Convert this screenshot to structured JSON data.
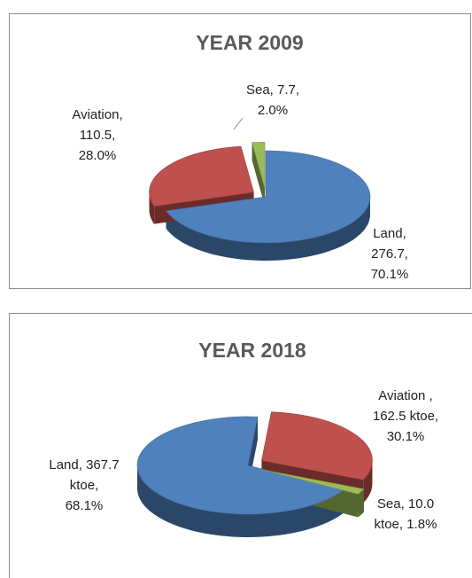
{
  "chart_data": [
    {
      "type": "pie",
      "title": "YEAR 2009",
      "categories": [
        "Land",
        "Aviation",
        "Sea"
      ],
      "values": [
        276.7,
        110.5,
        7.7
      ],
      "percentages": [
        70.1,
        28.0,
        2.0
      ],
      "value_labels": [
        [
          "Land,",
          "276.7,",
          "70.1%"
        ],
        [
          "Aviation,",
          "110.5,",
          "28.0%"
        ],
        [
          "Sea, 7.7,",
          "2.0%"
        ]
      ],
      "colors": [
        "#4f81bd",
        "#c0504d",
        "#9bbb59"
      ]
    },
    {
      "type": "pie",
      "title": "YEAR 2018",
      "categories": [
        "Land",
        "Aviation",
        "Sea"
      ],
      "values": [
        367.7,
        162.5,
        10.0
      ],
      "percentages": [
        68.1,
        30.1,
        1.8
      ],
      "value_labels": [
        [
          "Land, 367.7",
          "ktoe,",
          "68.1%"
        ],
        [
          "Aviation ,",
          "162.5 ktoe,",
          "30.1%"
        ],
        [
          "Sea, 10.0",
          "ktoe, 1.8%"
        ]
      ],
      "colors": [
        "#4f81bd",
        "#c0504d",
        "#9bbb59"
      ]
    }
  ]
}
